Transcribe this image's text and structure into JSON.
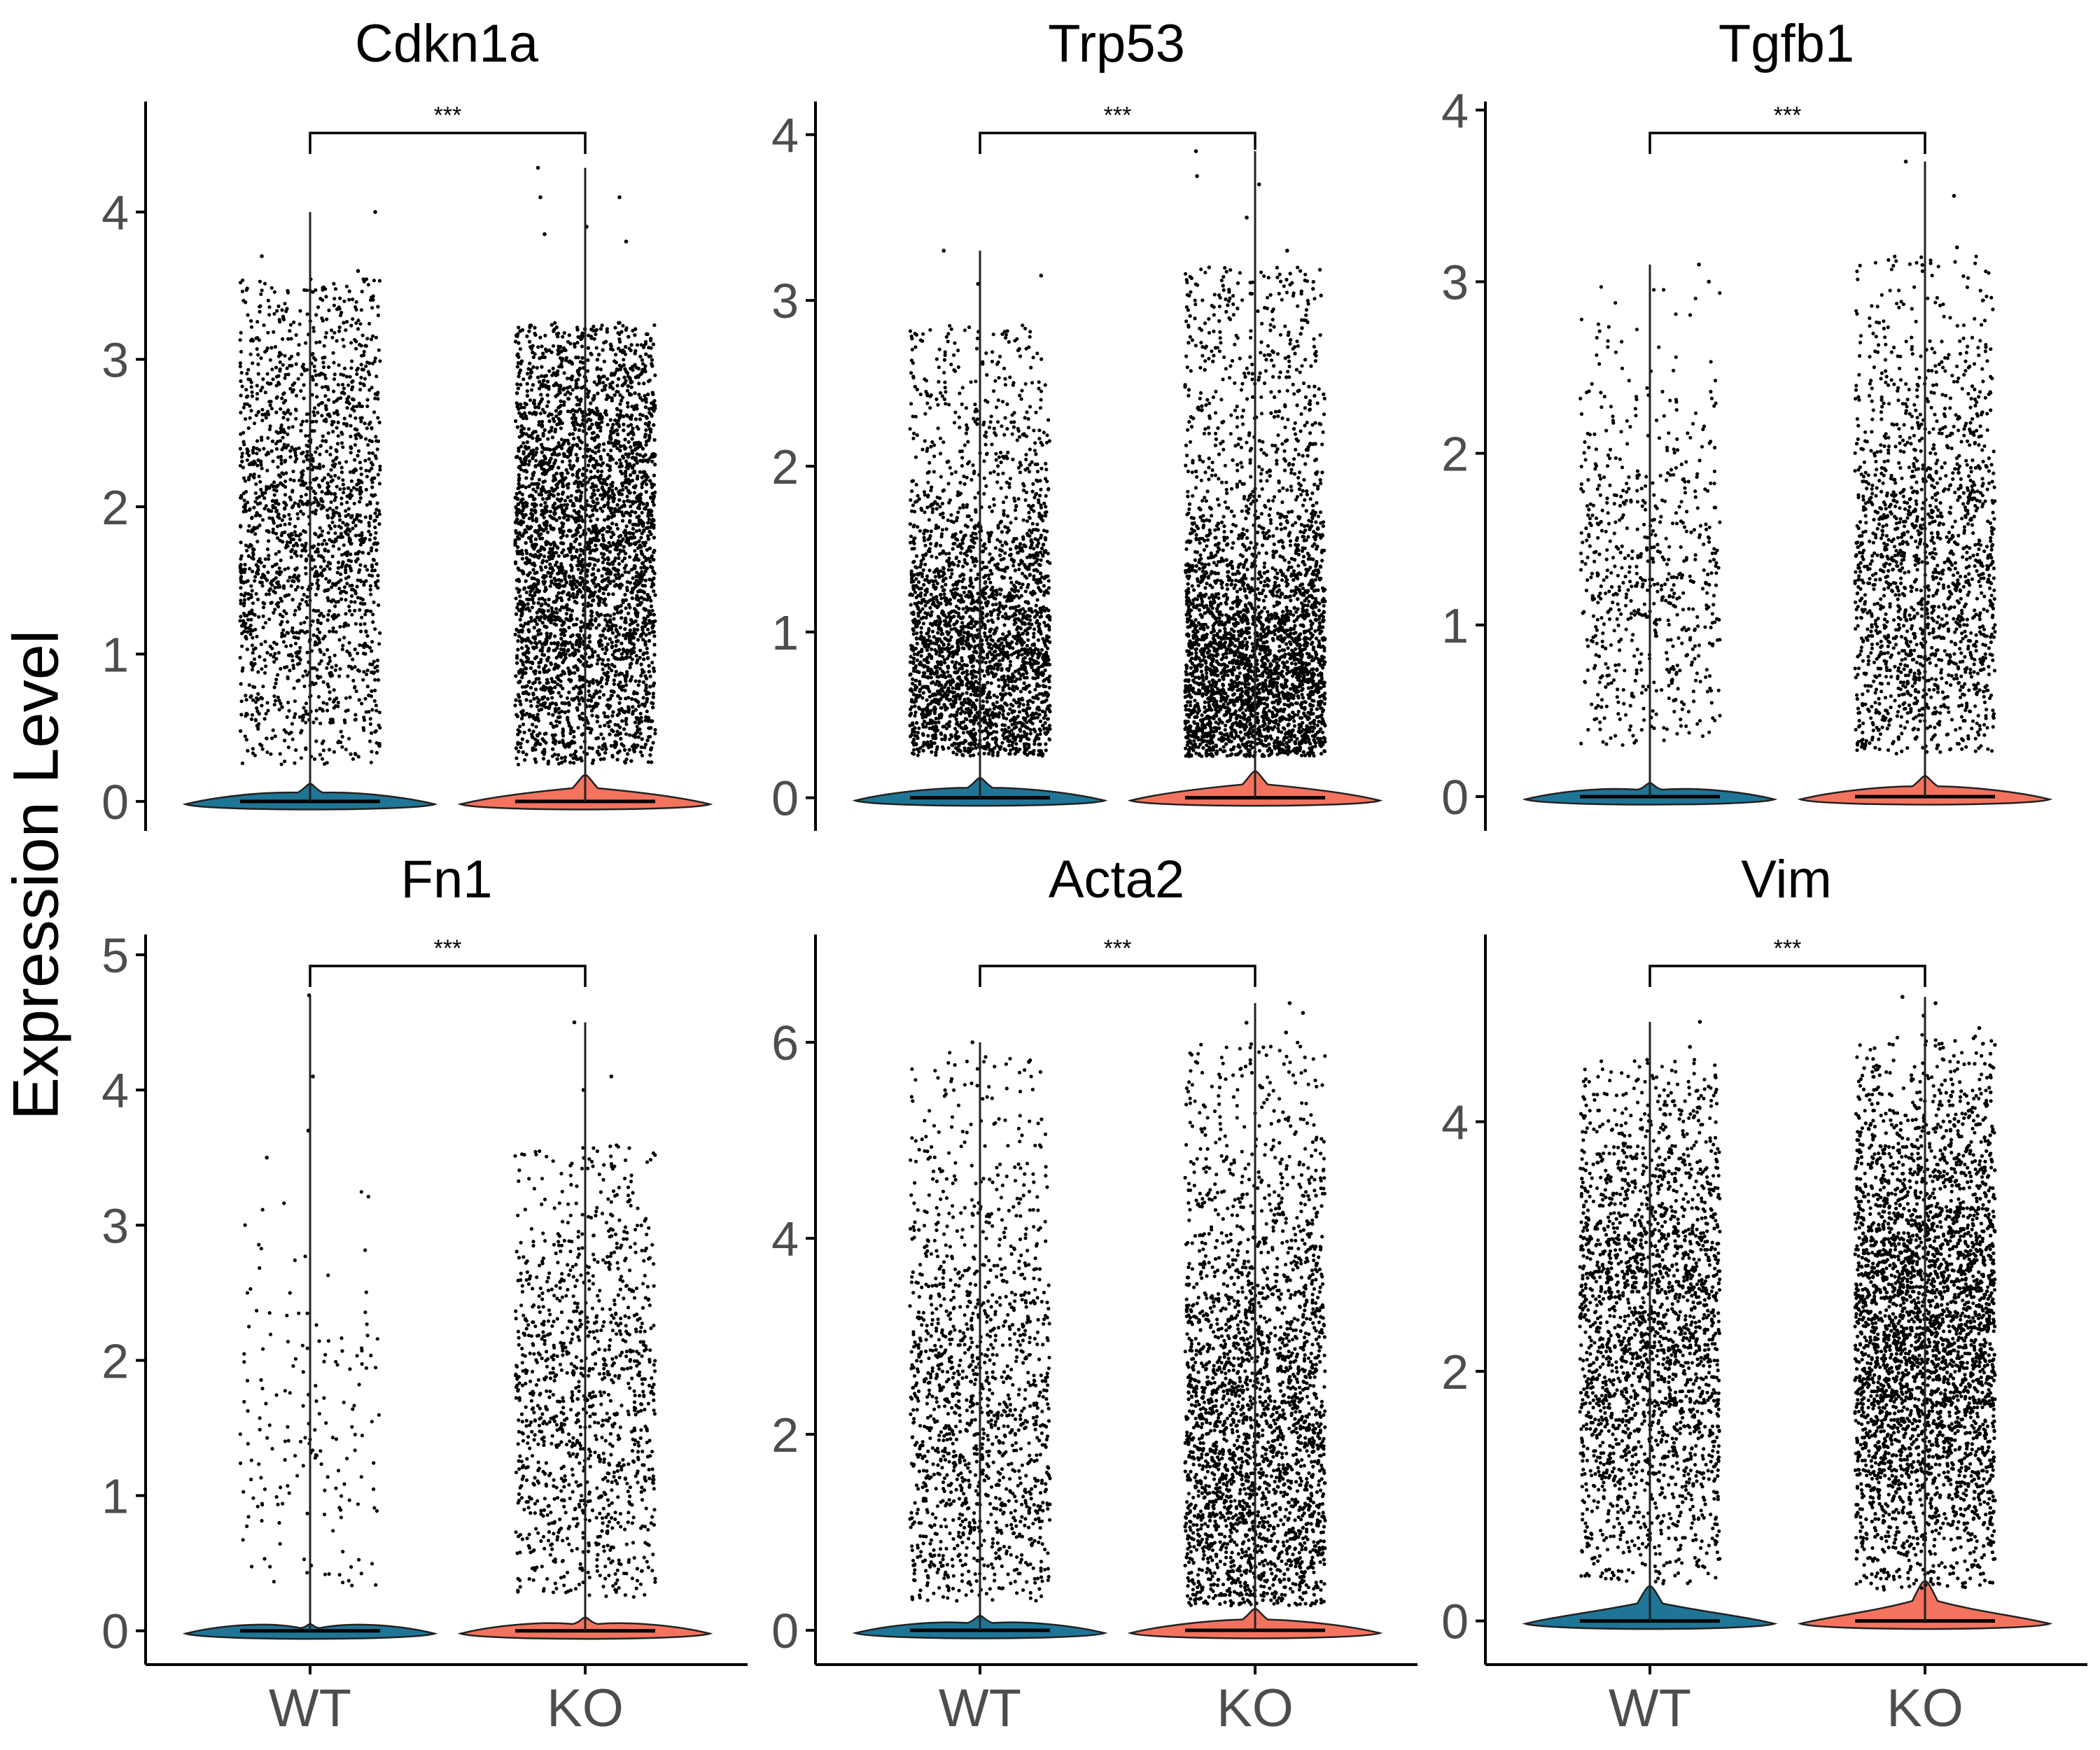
{
  "figure": {
    "ylabel": "Expression Level"
  },
  "colors": {
    "WT": "#1f7596",
    "KO": "#f4735f",
    "points": "#000000",
    "axis": "#000000",
    "tick_text": "#4d4d4d"
  },
  "chart_data": [
    {
      "type": "violin",
      "title": "Cdkn1a",
      "categories": [
        "WT",
        "KO"
      ],
      "ylim": [
        -0.2,
        4.75
      ],
      "yticks": [
        0,
        1,
        2,
        3,
        4
      ],
      "show_xticks": false,
      "significance": "***",
      "series": [
        {
          "name": "WT",
          "max": 4.0,
          "points": 1900,
          "point_low": 0.25,
          "point_high": 3.55,
          "center": 1.8,
          "spread": 1.0,
          "outliers": [
            4.0,
            3.7,
            3.6
          ],
          "violin_peak": 0.12
        },
        {
          "name": "KO",
          "max": 4.3,
          "points": 5600,
          "point_low": 0.25,
          "point_high": 3.25,
          "center": 1.7,
          "spread": 1.0,
          "outliers": [
            4.3,
            4.1,
            4.1,
            3.85,
            3.8,
            3.9
          ],
          "violin_peak": 0.18
        }
      ]
    },
    {
      "type": "violin",
      "title": "Trp53",
      "categories": [
        "WT",
        "KO"
      ],
      "ylim": [
        -0.2,
        4.2
      ],
      "yticks": [
        0,
        1,
        2,
        3,
        4
      ],
      "show_xticks": false,
      "significance": "***",
      "series": [
        {
          "name": "WT",
          "max": 3.3,
          "points": 2700,
          "point_low": 0.25,
          "point_high": 2.85,
          "center": 0.7,
          "spread": 0.6,
          "outliers": [
            3.3,
            3.15,
            3.1
          ],
          "violin_peak": 0.12
        },
        {
          "name": "KO",
          "max": 3.9,
          "points": 4200,
          "point_low": 0.25,
          "point_high": 3.2,
          "center": 0.6,
          "spread": 0.55,
          "outliers": [
            3.9,
            3.75,
            3.7,
            3.5,
            3.3
          ],
          "violin_peak": 0.16
        }
      ]
    },
    {
      "type": "violin",
      "title": "Tgfb1",
      "categories": [
        "WT",
        "KO"
      ],
      "ylim": [
        -0.2,
        4.05
      ],
      "yticks": [
        0,
        1,
        2,
        3,
        4
      ],
      "show_xticks": false,
      "significance": "***",
      "series": [
        {
          "name": "WT",
          "max": 3.1,
          "points": 650,
          "point_low": 0.3,
          "point_high": 3.0,
          "center": 1.2,
          "spread": 0.6,
          "outliers": [
            3.1,
            3.0
          ],
          "violin_peak": 0.08
        },
        {
          "name": "KO",
          "max": 3.7,
          "points": 1700,
          "point_low": 0.25,
          "point_high": 3.15,
          "center": 1.2,
          "spread": 0.8,
          "outliers": [
            3.7,
            3.5,
            3.2
          ],
          "violin_peak": 0.12
        }
      ]
    },
    {
      "type": "violin",
      "title": "Fn1",
      "categories": [
        "WT",
        "KO"
      ],
      "ylim": [
        -0.25,
        5.15
      ],
      "yticks": [
        0,
        1,
        2,
        3,
        4,
        5
      ],
      "show_xticks": true,
      "significance": "***",
      "series": [
        {
          "name": "WT",
          "max": 4.7,
          "points": 170,
          "point_low": 0.3,
          "point_high": 3.3,
          "center": 1.3,
          "spread": 0.8,
          "outliers": [
            4.7,
            4.1,
            3.7,
            3.5
          ],
          "violin_peak": 0.05
        },
        {
          "name": "KO",
          "max": 4.5,
          "points": 1150,
          "point_low": 0.25,
          "point_high": 3.6,
          "center": 1.6,
          "spread": 1.0,
          "outliers": [
            4.5,
            4.1,
            4.0
          ],
          "violin_peak": 0.1
        }
      ]
    },
    {
      "type": "violin",
      "title": "Acta2",
      "categories": [
        "WT",
        "KO"
      ],
      "ylim": [
        -0.35,
        7.1
      ],
      "yticks": [
        0,
        2,
        4,
        6
      ],
      "show_xticks": true,
      "significance": "***",
      "series": [
        {
          "name": "WT",
          "max": 6.0,
          "points": 1400,
          "point_low": 0.3,
          "point_high": 5.9,
          "center": 2.0,
          "spread": 1.5,
          "outliers": [
            6.0,
            5.8
          ],
          "violin_peak": 0.15
        },
        {
          "name": "KO",
          "max": 6.4,
          "points": 2600,
          "point_low": 0.25,
          "point_high": 6.0,
          "center": 1.6,
          "spread": 1.6,
          "outliers": [
            6.4,
            6.3,
            6.2,
            6.1
          ],
          "violin_peak": 0.22
        }
      ]
    },
    {
      "type": "violin",
      "title": "Vim",
      "categories": [
        "WT",
        "KO"
      ],
      "ylim": [
        -0.35,
        5.5
      ],
      "yticks": [
        0,
        2,
        4
      ],
      "show_xticks": true,
      "significance": "***",
      "series": [
        {
          "name": "WT",
          "max": 4.8,
          "points": 2300,
          "point_low": 0.3,
          "point_high": 4.5,
          "center": 2.3,
          "spread": 1.1,
          "outliers": [
            4.8,
            4.6
          ],
          "violin_peak": 0.28
        },
        {
          "name": "KO",
          "max": 5.0,
          "points": 4800,
          "point_low": 0.25,
          "point_high": 4.7,
          "center": 2.3,
          "spread": 1.1,
          "outliers": [
            5.0,
            4.95,
            4.85,
            4.75
          ],
          "violin_peak": 0.32
        }
      ]
    }
  ]
}
